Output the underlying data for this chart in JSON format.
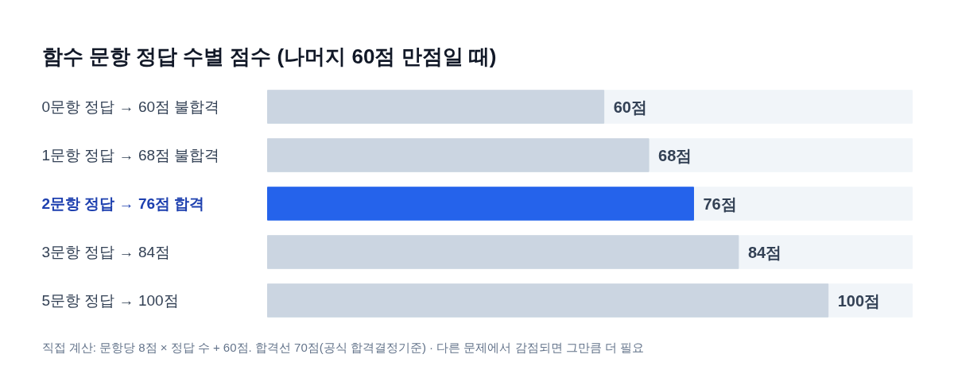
{
  "chart_data": {
    "type": "bar",
    "orientation": "horizontal",
    "title": "함수 문항 정답 수별 점수 (나머지 60점 만점일 때)",
    "categories": [
      "0문항 정답 → 60점 불합격",
      "1문항 정답 → 68점 불합격",
      "2문항 정답 → 76점 합격",
      "3문항 정답 → 84점",
      "5문항 정답 → 100점"
    ],
    "values": [
      60,
      68,
      76,
      84,
      100
    ],
    "colors": [
      "#cbd5e1",
      "#cbd5e1",
      "#2563eb",
      "#cbd5e1",
      "#cbd5e1"
    ],
    "value_labels": [
      "60점",
      "68점",
      "76점",
      "84점",
      "100점"
    ],
    "xlim": [
      0,
      115
    ],
    "annotations": [
      "직접 계산: 문항당 8점 × 정답 수 + 60점. 합격선 70점(공식 합격결정기준) · 다른 문제에서 감점되면 그만큼 더 필요"
    ]
  }
}
